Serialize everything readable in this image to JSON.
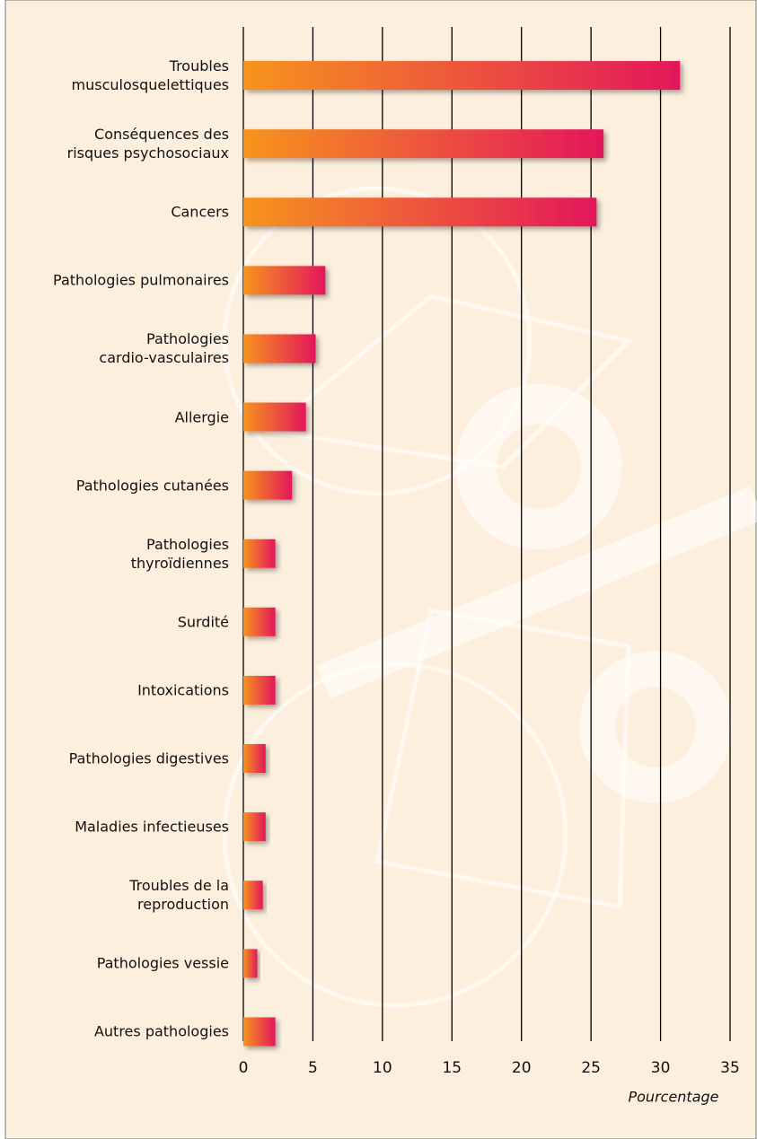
{
  "chart_data": {
    "type": "bar",
    "orientation": "horizontal",
    "categories": [
      "Troubles\nmusculosquelettiques",
      "Conséquences des\nrisques psychosociaux",
      "Cancers",
      "Pathologies pulmonaires",
      "Pathologies\ncardio-vasculaires",
      "Allergie",
      "Pathologies cutanées",
      "Pathologies\nthyroïdiennes",
      "Surdité",
      "Intoxications",
      "Pathologies digestives",
      "Maladies infectieuses",
      "Troubles de la\nreproduction",
      "Pathologies vessie",
      "Autres pathologies"
    ],
    "values": [
      31.4,
      25.9,
      25.4,
      5.9,
      5.2,
      4.5,
      3.5,
      2.3,
      2.3,
      2.3,
      1.6,
      1.6,
      1.4,
      1.0,
      2.3
    ],
    "colors": [
      "#f7941d",
      "#e3175c"
    ],
    "xlim": [
      0,
      35
    ],
    "xticks": [
      0,
      5,
      10,
      15,
      20,
      25,
      30,
      35
    ],
    "grid": true,
    "xlabel": "Pourcentage"
  }
}
